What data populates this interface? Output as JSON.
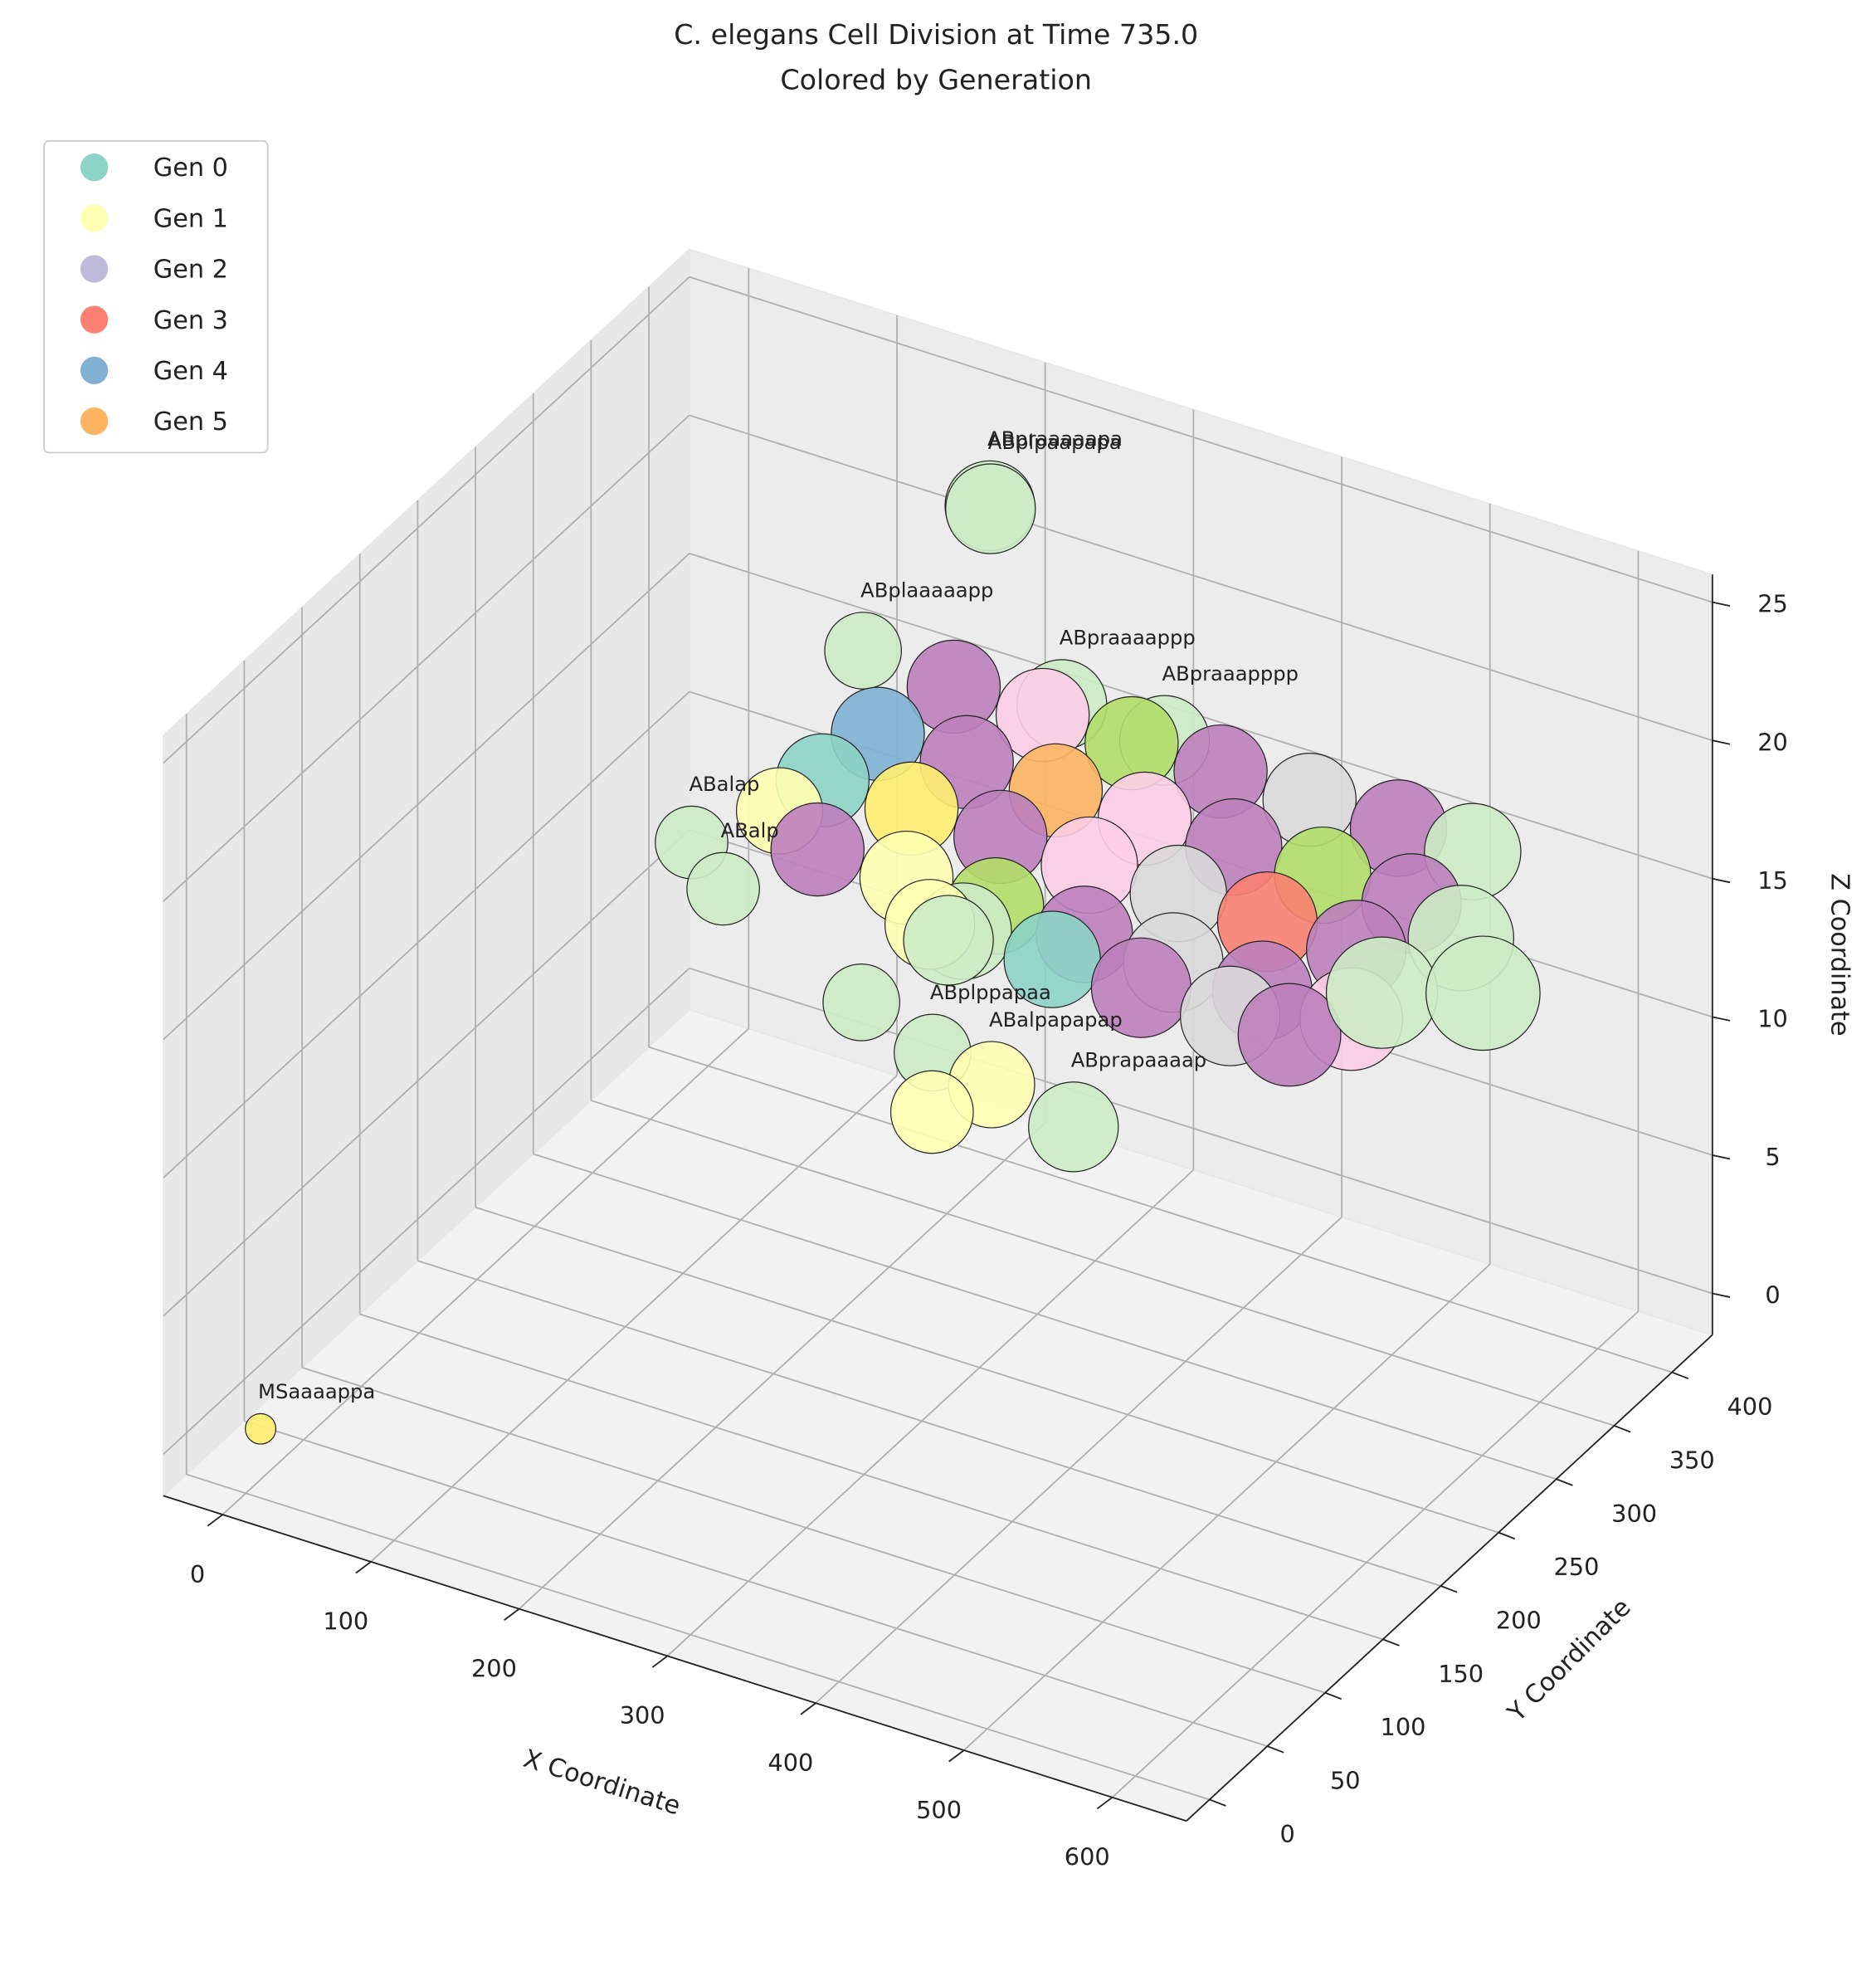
{
  "chart_data": {
    "type": "scatter3d",
    "title": "C. elegans Cell Division at Time 735.0",
    "subtitle": "Colored by Generation",
    "xlabel": "X Coordinate",
    "ylabel": "Y Coordinate",
    "zlabel": "Z Coordinate",
    "xlim": [
      -40,
      650
    ],
    "ylim": [
      -20,
      435
    ],
    "zlim": [
      -1.5,
      26
    ],
    "xticks": [
      0,
      100,
      200,
      300,
      400,
      500,
      600
    ],
    "yticks": [
      0,
      50,
      100,
      150,
      200,
      250,
      300,
      350,
      400
    ],
    "zticks": [
      0,
      5,
      10,
      15,
      20,
      25
    ],
    "grid": true,
    "legend_position": "upper left",
    "legend": [
      {
        "name": "Gen 0",
        "color": "#8dd3c7"
      },
      {
        "name": "Gen 1",
        "color": "#ffffb3"
      },
      {
        "name": "Gen 2",
        "color": "#bebada"
      },
      {
        "name": "Gen 3",
        "color": "#fb8072"
      },
      {
        "name": "Gen 4",
        "color": "#80b1d3"
      },
      {
        "name": "Gen 5",
        "color": "#fdb462"
      }
    ],
    "points": [
      {
        "x": 190,
        "y": 400,
        "z": 22,
        "size": 2600,
        "color": "#ccebc5",
        "label": "ABpraaaaapa"
      },
      {
        "x": 192,
        "y": 398,
        "z": 22,
        "size": 2600,
        "color": "#ccebc5",
        "label": "ABplpaapapa"
      },
      {
        "x": 145,
        "y": 348,
        "z": 18,
        "size": 1900,
        "color": "#ccebc5",
        "label": "ABplaaaaapp"
      },
      {
        "x": 244,
        "y": 393,
        "z": 16,
        "size": 2600,
        "color": "#ccebc5",
        "label": "ABpraaaappp"
      },
      {
        "x": 300,
        "y": 410,
        "z": 15,
        "size": 2600,
        "color": "#ccebc5",
        "label": "ABpraaapppp"
      },
      {
        "x": 150,
        "y": 420,
        "z": 14,
        "size": 2800,
        "color": "#bc80bd",
        "label": null
      },
      {
        "x": 210,
        "y": 420,
        "z": 14,
        "size": 2800,
        "color": "#fccde5",
        "label": null
      },
      {
        "x": 270,
        "y": 420,
        "z": 14,
        "size": 2800,
        "color": "#b3de69",
        "label": null
      },
      {
        "x": 330,
        "y": 420,
        "z": 14,
        "size": 2800,
        "color": "#bc80bd",
        "label": null
      },
      {
        "x": 390,
        "y": 420,
        "z": 14,
        "size": 2800,
        "color": "#d9d9d9",
        "label": null
      },
      {
        "x": 450,
        "y": 420,
        "z": 14,
        "size": 3000,
        "color": "#bc80bd",
        "label": null
      },
      {
        "x": 500,
        "y": 420,
        "z": 14,
        "size": 3000,
        "color": "#ccebc5",
        "label": null
      },
      {
        "x": 73,
        "y": 292,
        "z": 12,
        "size": 1700,
        "color": "#ccebc5",
        "label": "ABalap"
      },
      {
        "x": 99,
        "y": 286,
        "z": 11,
        "size": 1700,
        "color": "#ccebc5",
        "label": "ABalp"
      },
      {
        "x": 130,
        "y": 380,
        "z": 13.5,
        "size": 2800,
        "color": "#80b1d3",
        "label": null
      },
      {
        "x": 190,
        "y": 380,
        "z": 13.5,
        "size": 2800,
        "color": "#bc80bd",
        "label": null
      },
      {
        "x": 250,
        "y": 380,
        "z": 13.5,
        "size": 2800,
        "color": "#fdb462",
        "label": null
      },
      {
        "x": 310,
        "y": 380,
        "z": 13.5,
        "size": 2800,
        "color": "#fccde5",
        "label": null
      },
      {
        "x": 370,
        "y": 380,
        "z": 13.5,
        "size": 3000,
        "color": "#bc80bd",
        "label": null
      },
      {
        "x": 430,
        "y": 380,
        "z": 13.5,
        "size": 3000,
        "color": "#b3de69",
        "label": null
      },
      {
        "x": 490,
        "y": 380,
        "z": 13.5,
        "size": 3200,
        "color": "#bc80bd",
        "label": null
      },
      {
        "x": 120,
        "y": 345,
        "z": 13,
        "size": 2800,
        "color": "#8dd3c7",
        "label": null
      },
      {
        "x": 180,
        "y": 345,
        "z": 13,
        "size": 2800,
        "color": "#ffed6f",
        "label": null
      },
      {
        "x": 240,
        "y": 345,
        "z": 13,
        "size": 2800,
        "color": "#bc80bd",
        "label": null
      },
      {
        "x": 300,
        "y": 345,
        "z": 13,
        "size": 3000,
        "color": "#fccde5",
        "label": null
      },
      {
        "x": 360,
        "y": 345,
        "z": 13,
        "size": 3000,
        "color": "#d9d9d9",
        "label": null
      },
      {
        "x": 420,
        "y": 345,
        "z": 13,
        "size": 3200,
        "color": "#fb8072",
        "label": null
      },
      {
        "x": 480,
        "y": 345,
        "z": 13,
        "size": 3200,
        "color": "#bc80bd",
        "label": null
      },
      {
        "x": 130,
        "y": 295,
        "z": 14,
        "size": 2400,
        "color": "#ffffb3",
        "label": null
      },
      {
        "x": 140,
        "y": 315,
        "z": 12,
        "size": 2800,
        "color": "#bc80bd",
        "label": null
      },
      {
        "x": 200,
        "y": 315,
        "z": 12,
        "size": 2800,
        "color": "#ffffb3",
        "label": null
      },
      {
        "x": 260,
        "y": 315,
        "z": 12,
        "size": 3000,
        "color": "#b3de69",
        "label": null
      },
      {
        "x": 320,
        "y": 315,
        "z": 12,
        "size": 3000,
        "color": "#bc80bd",
        "label": null
      },
      {
        "x": 380,
        "y": 315,
        "z": 12,
        "size": 3200,
        "color": "#d9d9d9",
        "label": null
      },
      {
        "x": 440,
        "y": 315,
        "z": 12,
        "size": 3200,
        "color": "#bc80bd",
        "label": null
      },
      {
        "x": 500,
        "y": 315,
        "z": 12,
        "size": 3400,
        "color": "#fccde5",
        "label": null
      },
      {
        "x": 250,
        "y": 300,
        "z": 11.5,
        "size": 3000,
        "color": "#ccebc5",
        "label": null
      },
      {
        "x": 310,
        "y": 300,
        "z": 11.5,
        "size": 3000,
        "color": "#8dd3c7",
        "label": null
      },
      {
        "x": 370,
        "y": 300,
        "z": 11.5,
        "size": 3200,
        "color": "#bc80bd",
        "label": null
      },
      {
        "x": 430,
        "y": 300,
        "z": 11.5,
        "size": 3200,
        "color": "#d9d9d9",
        "label": null
      },
      {
        "x": 470,
        "y": 300,
        "z": 11.5,
        "size": 3400,
        "color": "#bc80bd",
        "label": null
      },
      {
        "x": 222,
        "y": 307,
        "z": 11,
        "size": 2600,
        "color": "#ffffb3",
        "label": null
      },
      {
        "x": 240,
        "y": 300,
        "z": 11,
        "size": 2600,
        "color": "#ccebc5",
        "label": null
      },
      {
        "x": 496,
        "y": 415,
        "z": 11,
        "size": 3600,
        "color": "#ccebc5",
        "label": null
      },
      {
        "x": 456,
        "y": 398,
        "z": 9,
        "size": 4000,
        "color": "#ccebc5",
        "label": null
      },
      {
        "x": 507,
        "y": 420,
        "z": 9,
        "size": 4200,
        "color": "#ccebc5",
        "label": null
      },
      {
        "x": 200,
        "y": 276,
        "z": 9,
        "size": 1900,
        "color": "#ccebc5",
        "label": null
      },
      {
        "x": 248,
        "y": 276,
        "z": 8,
        "size": 1900,
        "color": "#ccebc5",
        "label": "ABplppapaa"
      },
      {
        "x": 280,
        "y": 286,
        "z": 7,
        "size": 2400,
        "color": "#ffffb3",
        "label": "ABalpapapap"
      },
      {
        "x": 250,
        "y": 273,
        "z": 6,
        "size": 2200,
        "color": "#ffffb3",
        "label": null
      },
      {
        "x": 329,
        "y": 294,
        "z": 6,
        "size": 2600,
        "color": "#ccebc5",
        "label": "ABprapaaaap"
      },
      {
        "x": 10,
        "y": 0,
        "z": 1,
        "size": 300,
        "color": "#ffed6f",
        "label": "MSaaaappa"
      }
    ]
  }
}
